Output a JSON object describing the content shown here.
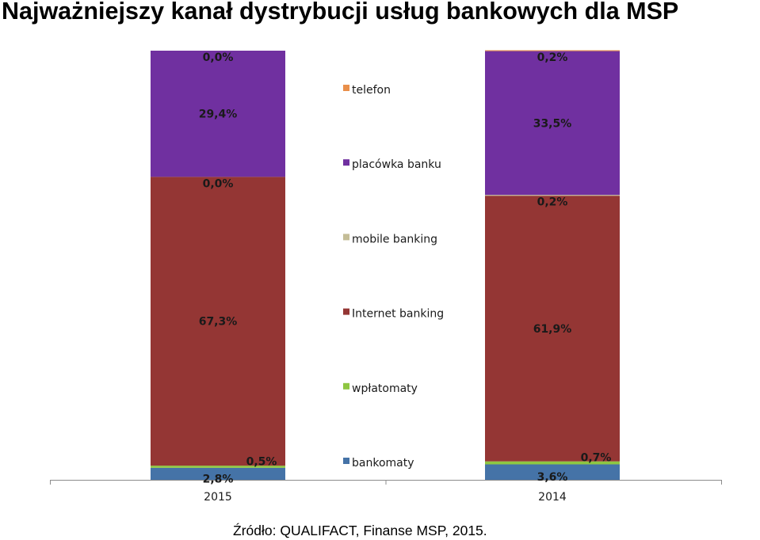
{
  "title": "Najważniejszy kanał dystrybucji usług bankowych dla MSP",
  "source": "Źródło: QUALIFACT, Finanse MSP, 2015.",
  "chart_data": {
    "type": "bar",
    "stacked": true,
    "percent_stacked": true,
    "categories": [
      "2015",
      "2014"
    ],
    "series": [
      {
        "name": "bankomaty",
        "color": "#4573a7",
        "values": [
          2.8,
          3.6
        ],
        "labels": [
          "2,8%",
          "3,6%"
        ]
      },
      {
        "name": "wpłatomaty",
        "color": "#8ec641",
        "values": [
          0.5,
          0.7
        ],
        "labels": [
          "0,5%",
          "0,7%"
        ]
      },
      {
        "name": "Internet banking",
        "color": "#943634",
        "values": [
          67.3,
          61.9
        ],
        "labels": [
          "67,3%",
          "61,9%"
        ]
      },
      {
        "name": "mobile banking",
        "color": "#c4bd97",
        "values": [
          0.0,
          0.2
        ],
        "labels": [
          "0,0%",
          "0,2%"
        ]
      },
      {
        "name": "placówka banku",
        "color": "#7030a0",
        "values": [
          29.4,
          33.5
        ],
        "labels": [
          "29,4%",
          "33,5%"
        ]
      },
      {
        "name": "telefon",
        "color": "#e98f4a",
        "values": [
          0.0,
          0.2
        ],
        "labels": [
          "0,0%",
          "0,2%"
        ]
      }
    ],
    "legend_order": [
      "telefon",
      "placówka banku",
      "mobile banking",
      "Internet banking",
      "wpłatomaty",
      "bankomaty"
    ],
    "ylim": [
      0,
      100
    ],
    "legend_position": "center",
    "grid": false
  }
}
